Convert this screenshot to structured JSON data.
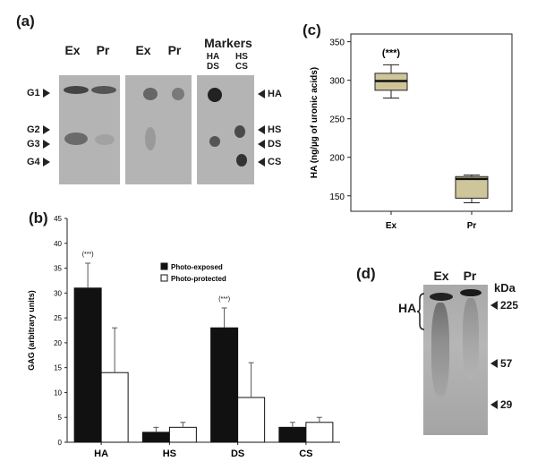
{
  "panel_a": {
    "letter": "(a)",
    "lanes": [
      "Ex",
      "Pr",
      "Ex",
      "Pr"
    ],
    "markers_title": "Markers",
    "marker_lane1": [
      "HA",
      "DS"
    ],
    "marker_lane2": [
      "HS",
      "CS"
    ],
    "left_labels": [
      "G1",
      "G2",
      "G3",
      "G4"
    ],
    "right_labels": [
      "HA",
      "HS",
      "DS",
      "CS"
    ]
  },
  "panel_c": {
    "letter": "(c)",
    "annotation": "(***)"
  },
  "panel_d": {
    "letter": "(d)",
    "lanes": [
      "Ex",
      "Pr"
    ],
    "unit": "kDa",
    "bracket_label": "HA",
    "mw_markers": [
      "225",
      "57",
      "29"
    ]
  },
  "chart_data": [
    {
      "id": "b",
      "type": "bar",
      "title": "(b)",
      "categories": [
        "HA",
        "HS",
        "DS",
        "CS"
      ],
      "series": [
        {
          "name": "Photo-exposed",
          "values": [
            31,
            2,
            23,
            3
          ],
          "errors": [
            5,
            1,
            4,
            1
          ],
          "color": "#111111"
        },
        {
          "name": "Photo-protected",
          "values": [
            14,
            3,
            9,
            4
          ],
          "errors": [
            9,
            1,
            7,
            1
          ],
          "color": "#ffffff"
        }
      ],
      "annotations": [
        {
          "category": "HA",
          "text": "(***)"
        },
        {
          "category": "DS",
          "text": "(***)"
        }
      ],
      "xlabel": "",
      "ylabel": "GAG (arbitrary units)",
      "ylim": [
        0,
        45
      ],
      "yticks": [
        0,
        5,
        10,
        15,
        20,
        25,
        30,
        35,
        40,
        45
      ],
      "grid": false,
      "legend": "top-right"
    },
    {
      "id": "c",
      "type": "box",
      "categories": [
        "Ex",
        "Pr"
      ],
      "boxes": [
        {
          "category": "Ex",
          "min": 277,
          "q1": 287,
          "median": 299,
          "q3": 309,
          "max": 320
        },
        {
          "category": "Pr",
          "min": 141,
          "q1": 147,
          "median": 172,
          "q3": 175,
          "max": 177
        }
      ],
      "box_color": "#cfc59a",
      "ylabel": "HA (ng/µg of uronic acids)",
      "ylim": [
        130,
        360
      ],
      "yticks": [
        150,
        200,
        250,
        300,
        350
      ],
      "grid": false
    }
  ]
}
